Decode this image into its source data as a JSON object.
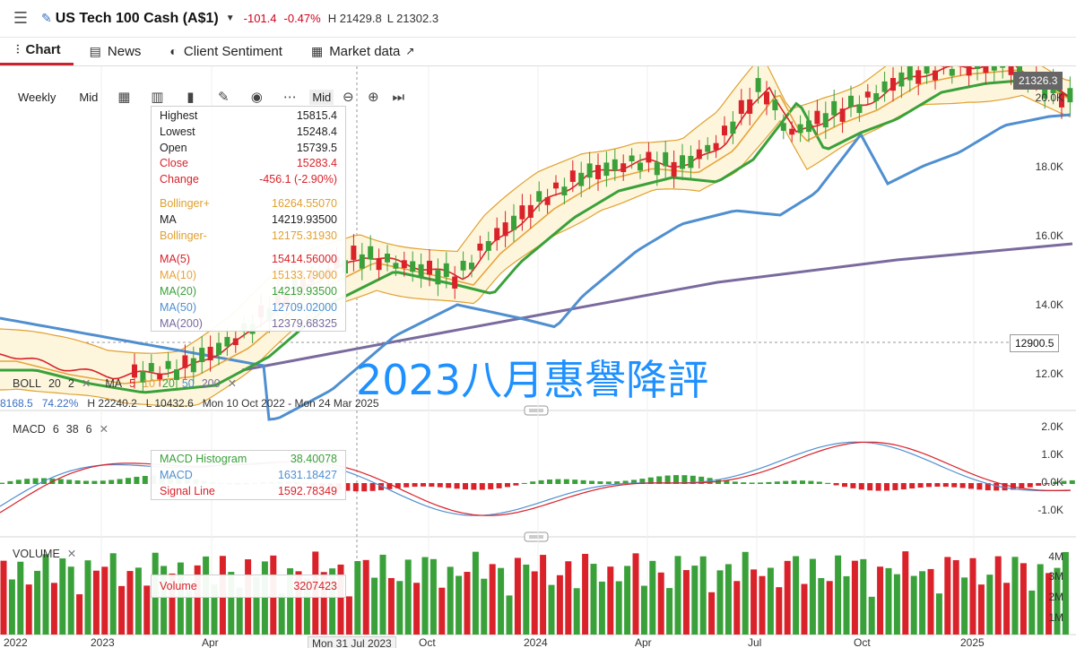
{
  "header": {
    "title": "US Tech 100 Cash (A$1)",
    "change": "-101.4",
    "change_pct": "-0.47%",
    "high": "H 21429.8",
    "low": "L 21302.3"
  },
  "tabs": [
    {
      "label": "Chart",
      "icon": "candlestick-icon",
      "active": true
    },
    {
      "label": "News",
      "icon": "newspaper-icon",
      "active": false
    },
    {
      "label": "Client Sentiment",
      "icon": "sentiment-icon",
      "active": false
    },
    {
      "label": "Market data",
      "icon": "calculator-icon",
      "active": false,
      "external": true
    }
  ],
  "toolbar": {
    "interval": "Weekly",
    "mid": "Mid",
    "mid2": "Mid"
  },
  "tooltip": {
    "highest_label": "Highest",
    "highest": "15815.4",
    "lowest_label": "Lowest",
    "lowest": "15248.4",
    "open_label": "Open",
    "open": "15739.5",
    "close_label": "Close",
    "close": "15283.4",
    "change_label": "Change",
    "change": "-456.1 (-2.90%)",
    "boll_upper_label": "Bollinger+",
    "boll_upper": "16264.55070",
    "ma_label": "MA",
    "ma": "14219.93500",
    "boll_lower_label": "Bollinger-",
    "boll_lower": "12175.31930",
    "ma5_label": "MA(5)",
    "ma5": "15414.56000",
    "ma10_label": "MA(10)",
    "ma10": "15133.79000",
    "ma20_label": "MA(20)",
    "ma20": "14219.93500",
    "ma50_label": "MA(50)",
    "ma50": "12709.02000",
    "ma200_label": "MA(200)",
    "ma200": "12379.68325"
  },
  "price_labels": {
    "current": "21326.3",
    "crosshair": "12900.5"
  },
  "indicators": {
    "boll": {
      "name": "BOLL",
      "p1": "20",
      "p2": "2"
    },
    "ma": {
      "name": "MA",
      "p": [
        "5",
        "10",
        "20",
        "50",
        "200"
      ]
    },
    "macd": {
      "name": "MACD",
      "p": [
        "6",
        "38",
        "6"
      ]
    },
    "volume": {
      "name": "VOLUME"
    }
  },
  "info_line": {
    "v1": "8168.5",
    "v2": "74.22%",
    "high": "H 22240.2",
    "low": "L 10432.6",
    "range": "Mon 10 Oct 2022 - Mon 24 Mar 2025"
  },
  "macd_tooltip": {
    "hist_label": "MACD Histogram",
    "hist": "38.40078",
    "macd_label": "MACD",
    "macd": "1631.18427",
    "signal_label": "Signal Line",
    "signal": "1592.78349"
  },
  "volume_tooltip": {
    "label": "Volume",
    "value": "3207423"
  },
  "overlay_text": "2023八月惠譽降評",
  "y_axis": {
    "price": [
      "20.0K",
      "18.0K",
      "16.0K",
      "14.0K",
      "12.0K"
    ],
    "macd": [
      "2.0K",
      "1.0K",
      "0.0K",
      "-1.0K"
    ],
    "volume": [
      "4M",
      "3M",
      "2M",
      "1M"
    ]
  },
  "x_axis": [
    "2022",
    "2023",
    "Apr",
    "Mon 31 Jul 2023",
    "Oct",
    "2024",
    "Apr",
    "Jul",
    "Oct",
    "2025"
  ],
  "colors": {
    "up": "#3aa13a",
    "down": "#d9222a",
    "ma5": "#d9222a",
    "ma10": "#e8a33a",
    "ma20": "#3aa13a",
    "ma50": "#4f8fd0",
    "ma200": "#7a6a9e",
    "boll": "#e0a030",
    "overlay": "#1e90ff"
  }
}
